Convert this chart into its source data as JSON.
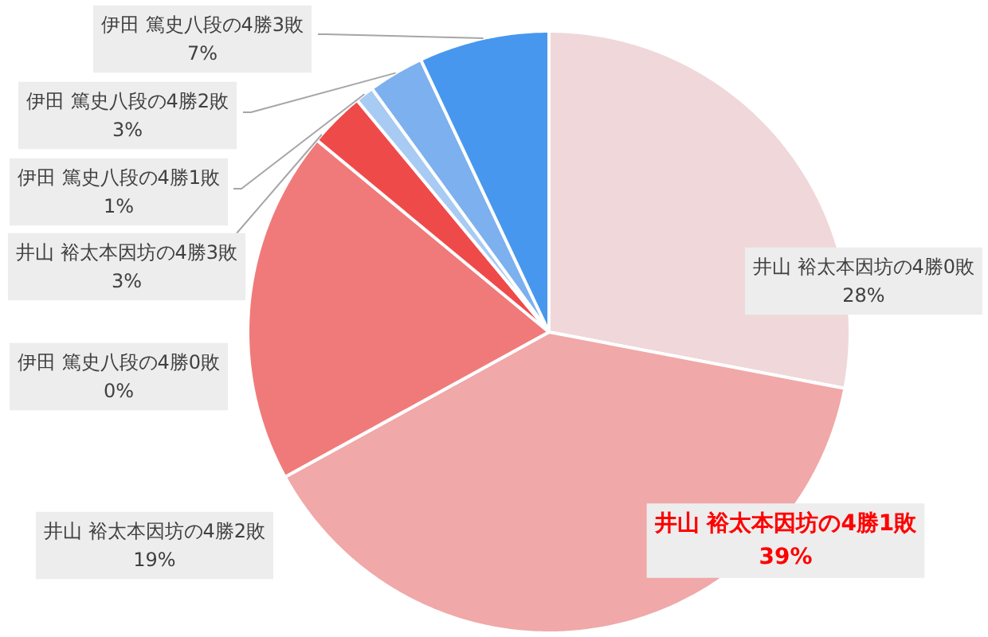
{
  "chart_data": {
    "type": "pie",
    "categories": [
      "井山 裕太本因坊の4勝0敗",
      "井山 裕太本因坊の4勝1敗",
      "井山 裕太本因坊の4勝2敗",
      "井山 裕太本因坊の4勝3敗",
      "伊田 篤史八段の4勝0敗",
      "伊田 篤史八段の4勝1敗",
      "伊田 篤史八段の4勝2敗",
      "伊田 篤史八段の4勝3敗"
    ],
    "values": [
      28,
      39,
      19,
      3,
      0,
      1,
      3,
      7
    ],
    "colors": [
      "#f0d7d9",
      "#f0a8a8",
      "#f07a7a",
      "#ef4a4a",
      "#d6e6f8",
      "#a8cbf3",
      "#7cb0ef",
      "#4797ef"
    ],
    "value_labels": [
      "28%",
      "39%",
      "19%",
      "3%",
      "0%",
      "1%",
      "3%",
      "7%"
    ]
  }
}
